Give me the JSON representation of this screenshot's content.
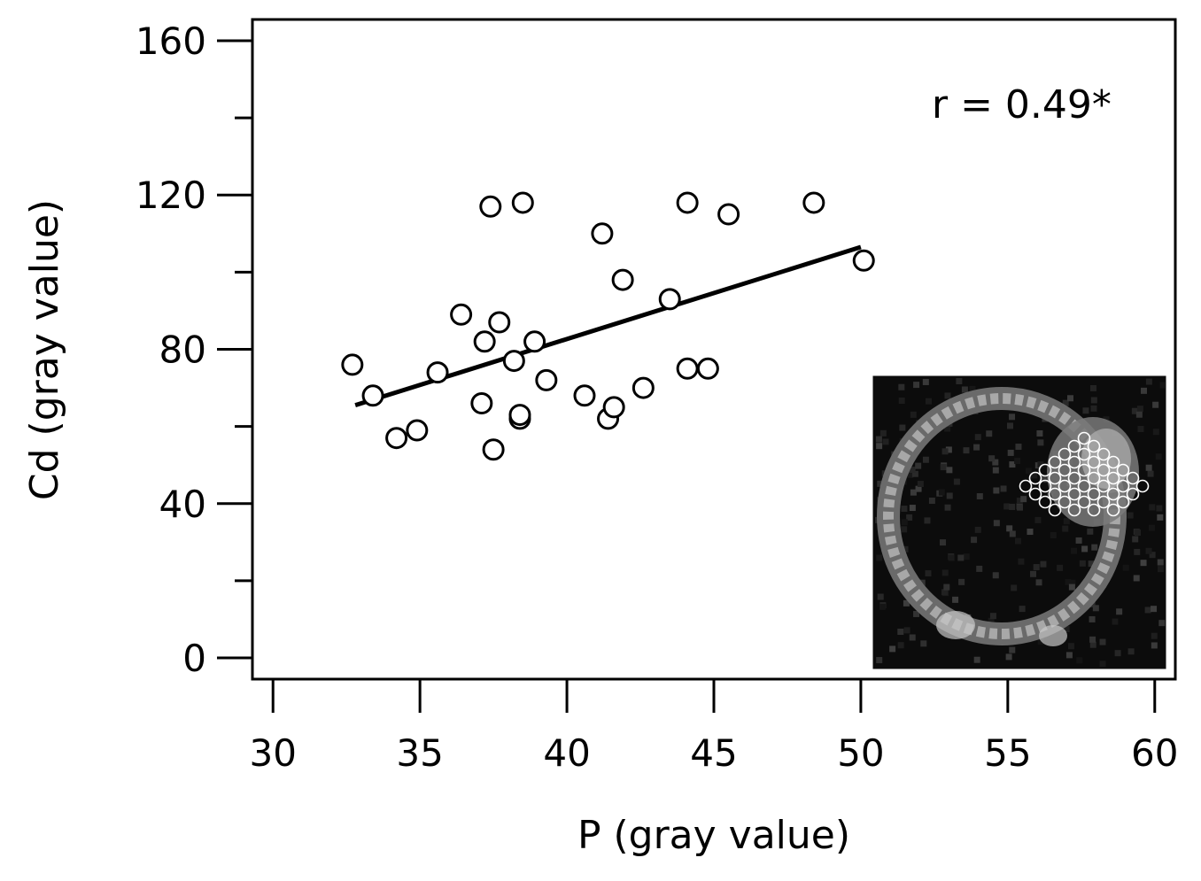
{
  "chart_data": {
    "type": "scatter",
    "xlabel": "P (gray value)",
    "ylabel": "Cd (gray value)",
    "xlim": [
      29.3,
      60.7
    ],
    "ylim": [
      -5.5,
      165.5
    ],
    "x_ticks": [
      30,
      35,
      40,
      45,
      50,
      55,
      60
    ],
    "x_tick_labels": [
      "30",
      "35",
      "40",
      "45",
      "50",
      "55",
      "60"
    ],
    "y_ticks": [
      0,
      40,
      80,
      120,
      160
    ],
    "y_tick_labels": [
      "0",
      "40",
      "80",
      "120",
      "160"
    ],
    "y_minor_ticks": [
      20,
      60,
      100,
      140
    ],
    "grid": false,
    "annotation": "r = 0.49*",
    "series": [
      {
        "marker": "open-circle",
        "x": [
          32.7,
          33.4,
          34.2,
          34.9,
          35.6,
          36.4,
          37.1,
          37.2,
          37.4,
          37.5,
          37.7,
          38.2,
          38.4,
          38.4,
          38.5,
          38.9,
          39.3,
          40.6,
          41.2,
          41.4,
          41.6,
          41.9,
          42.6,
          43.5,
          44.1,
          44.1,
          44.8,
          45.5,
          48.4,
          50.1
        ],
        "y": [
          76,
          68,
          57,
          59,
          74,
          89,
          66,
          82,
          117,
          54,
          87,
          77,
          62,
          63,
          118,
          82,
          72,
          68,
          110,
          62,
          65,
          98,
          70,
          93,
          118,
          75,
          75,
          115,
          118,
          103
        ]
      }
    ],
    "trendline": {
      "x": [
        32.8,
        50.0
      ],
      "y": [
        65.5,
        106.5
      ]
    },
    "inset_image": {
      "description_free": true,
      "background": "#0c0c0c",
      "ring_color": "#a8a8a8",
      "roi_marker_color": "#ffffff"
    }
  }
}
